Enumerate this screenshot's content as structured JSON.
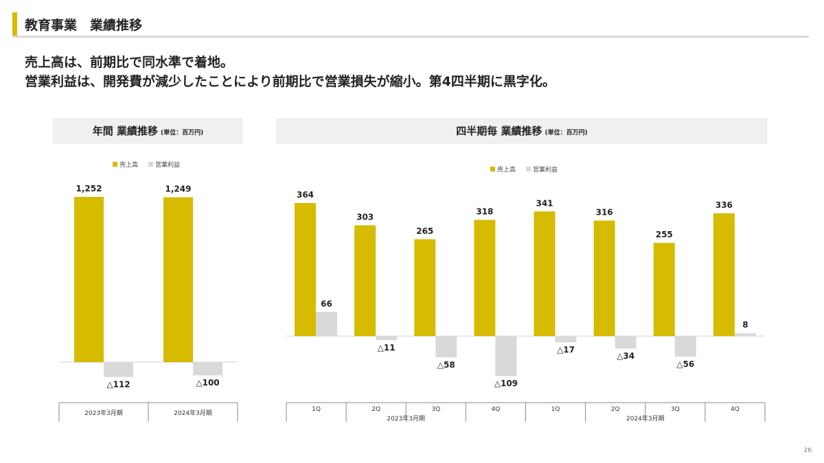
{
  "header": {
    "title": "教育事業　業績推移"
  },
  "lead_lines": [
    "売上高は、前期比で同水準で着地。",
    "営業利益は、開発費が減少したことにより前期比で営業損失が縮小。第4四半期に黒字化。"
  ],
  "page_number": "26",
  "colors": {
    "accent": "#d6bb00",
    "sales": "#d6bb00",
    "profit": "#d9d9d9"
  },
  "panels": {
    "annual": {
      "title": "年間 業績推移",
      "unit": "(単位：百万円)"
    },
    "quarterly": {
      "title": "四半期毎 業績推移",
      "unit": "(単位：百万円)"
    }
  },
  "chart_data": [
    {
      "type": "bar",
      "title": "年間 業績推移",
      "unit": "(単位：百万円)",
      "categories": [
        "2023年3月期",
        "2024年3月期"
      ],
      "series": [
        {
          "name": "売上高",
          "values": [
            1252,
            1249
          ],
          "labels": [
            "1,252",
            "1,249"
          ]
        },
        {
          "name": "営業利益",
          "values": [
            -112,
            -100
          ],
          "labels": [
            "△112",
            "△100"
          ]
        }
      ],
      "legend": "top-center"
    },
    {
      "type": "bar",
      "title": "四半期毎 業績推移",
      "unit": "(単位：百万円)",
      "categories": [
        "1Q",
        "2Q",
        "3Q",
        "4Q",
        "1Q",
        "2Q",
        "3Q",
        "4Q"
      ],
      "groups": [
        {
          "label": "2023年3月期",
          "span": 4
        },
        {
          "label": "2024年3月期",
          "span": 4
        }
      ],
      "series": [
        {
          "name": "売上高",
          "values": [
            364,
            303,
            265,
            318,
            341,
            316,
            255,
            336
          ],
          "labels": [
            "364",
            "303",
            "265",
            "318",
            "341",
            "316",
            "255",
            "336"
          ]
        },
        {
          "name": "営業利益",
          "values": [
            66,
            -11,
            -58,
            -109,
            -17,
            -34,
            -56,
            8
          ],
          "labels": [
            "66",
            "△11",
            "△58",
            "△109",
            "△17",
            "△34",
            "△56",
            "8"
          ]
        }
      ],
      "legend": "top-center"
    }
  ]
}
